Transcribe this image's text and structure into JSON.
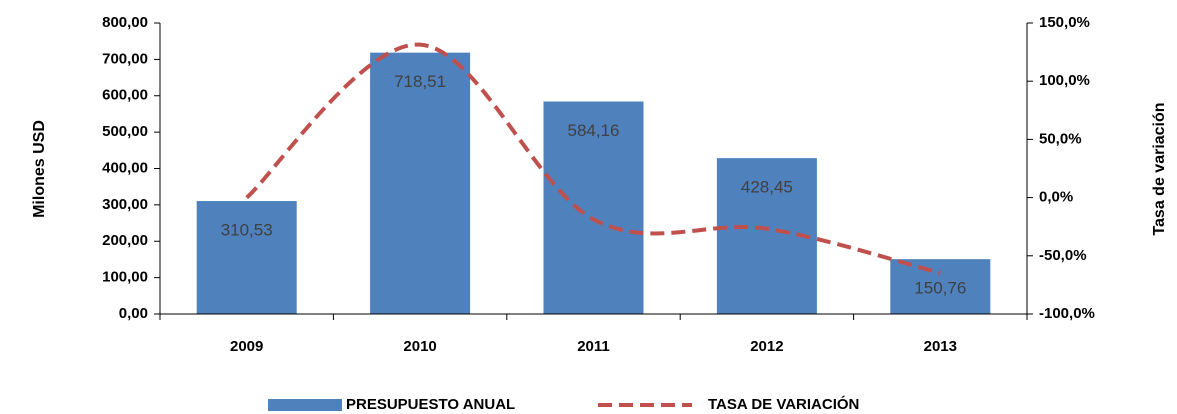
{
  "chart_data": {
    "type": "bar",
    "categories": [
      "2009",
      "2010",
      "2011",
      "2012",
      "2013"
    ],
    "ylabel": "Milones USD",
    "y2label": "Tasa de variación",
    "ylim": [
      0,
      800
    ],
    "yticks": [
      {
        "value": 0,
        "label": "0,00"
      },
      {
        "value": 100,
        "label": "100,00"
      },
      {
        "value": 200,
        "label": "200,00"
      },
      {
        "value": 300,
        "label": "300,00"
      },
      {
        "value": 400,
        "label": "400,00"
      },
      {
        "value": 500,
        "label": "500,00"
      },
      {
        "value": 600,
        "label": "600,00"
      },
      {
        "value": 700,
        "label": "700,00"
      },
      {
        "value": 800,
        "label": "800,00"
      }
    ],
    "y2lim": [
      -100,
      150
    ],
    "y2ticks": [
      {
        "value": -100,
        "label": "-100,0%"
      },
      {
        "value": -50,
        "label": "-50,0%"
      },
      {
        "value": 0,
        "label": "0,0%"
      },
      {
        "value": 50,
        "label": "50,0%"
      },
      {
        "value": 100,
        "label": "100,0%"
      },
      {
        "value": 150,
        "label": "150,0%"
      }
    ],
    "series": [
      {
        "name": "PRESUPUESTO ANUAL",
        "type": "bar",
        "color": "#4f81bd",
        "values": [
          310.53,
          718.51,
          584.16,
          428.45,
          150.76
        ],
        "value_labels": [
          "310,53",
          "718,51",
          "584,16",
          "428,45",
          "150,76"
        ]
      },
      {
        "name": "TASA DE VARIACIÓN",
        "type": "line",
        "axis": "y2",
        "color": "#c0504d",
        "dashed": true,
        "smooth": true,
        "values": [
          0,
          131.4,
          -18.7,
          -26.7,
          -64.8
        ]
      }
    ]
  }
}
